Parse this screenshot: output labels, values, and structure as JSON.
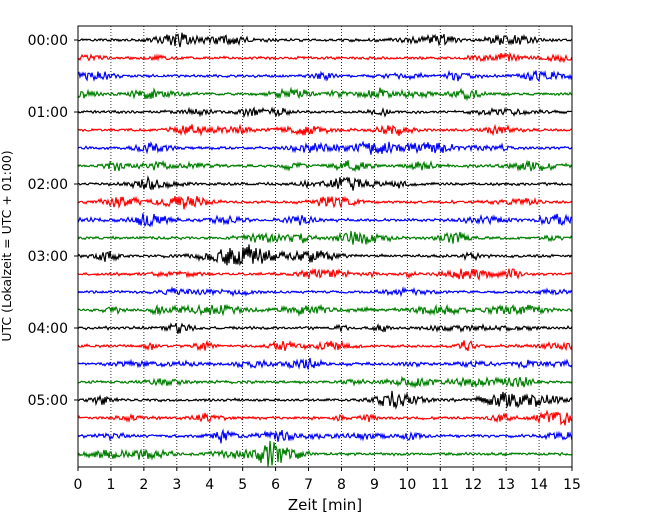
{
  "chart_data": {
    "type": "line",
    "xlabel": "Zeit  [min]",
    "ylabel": "UTC (Lokalzeit = UTC + 01:00)",
    "xlim": [
      0,
      15
    ],
    "x_ticks": [
      "0",
      "1",
      "2",
      "3",
      "4",
      "5",
      "6",
      "7",
      "8",
      "9",
      "10",
      "11",
      "12",
      "13",
      "14",
      "15"
    ],
    "y_ticks": [
      "00:00",
      "01:00",
      "02:00",
      "03:00",
      "04:00",
      "05:00"
    ],
    "traces_per_hour": 4,
    "trace_count": 24,
    "trace_colors": [
      "#000000",
      "#ff0000",
      "#0000ff",
      "#007f00"
    ],
    "grid": "vertical dotted at each minute"
  }
}
